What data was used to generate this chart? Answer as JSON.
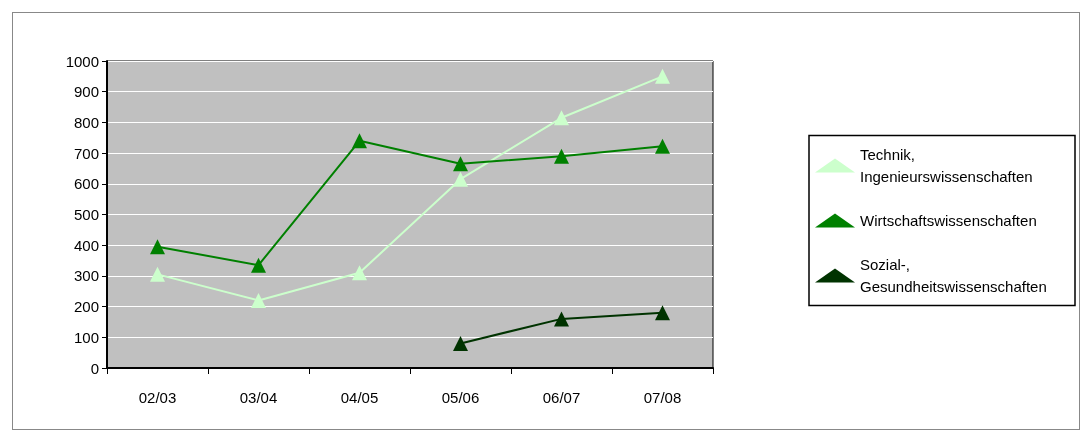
{
  "chart_data": {
    "type": "line",
    "categories": [
      "02/03",
      "03/04",
      "04/05",
      "05/06",
      "06/07",
      "07/08"
    ],
    "series": [
      {
        "name": "Technik, Ingenieurswissenschaften",
        "color": "#ccffcc",
        "values": [
          305,
          220,
          310,
          615,
          815,
          950
        ]
      },
      {
        "name": "Wirtschaftswissenschaften",
        "color": "#008000",
        "values": [
          395,
          335,
          740,
          665,
          690,
          722
        ]
      },
      {
        "name": "Sozial-, Gesundheitswissenschaften",
        "color": "#003300",
        "values": [
          null,
          null,
          null,
          80,
          160,
          180
        ]
      }
    ],
    "ylim": [
      0,
      1000
    ],
    "yticks": [
      0,
      100,
      200,
      300,
      400,
      500,
      600,
      700,
      800,
      900,
      1000
    ],
    "grid": "y",
    "legend": "right",
    "marker": "triangle",
    "line_style": "solid"
  }
}
